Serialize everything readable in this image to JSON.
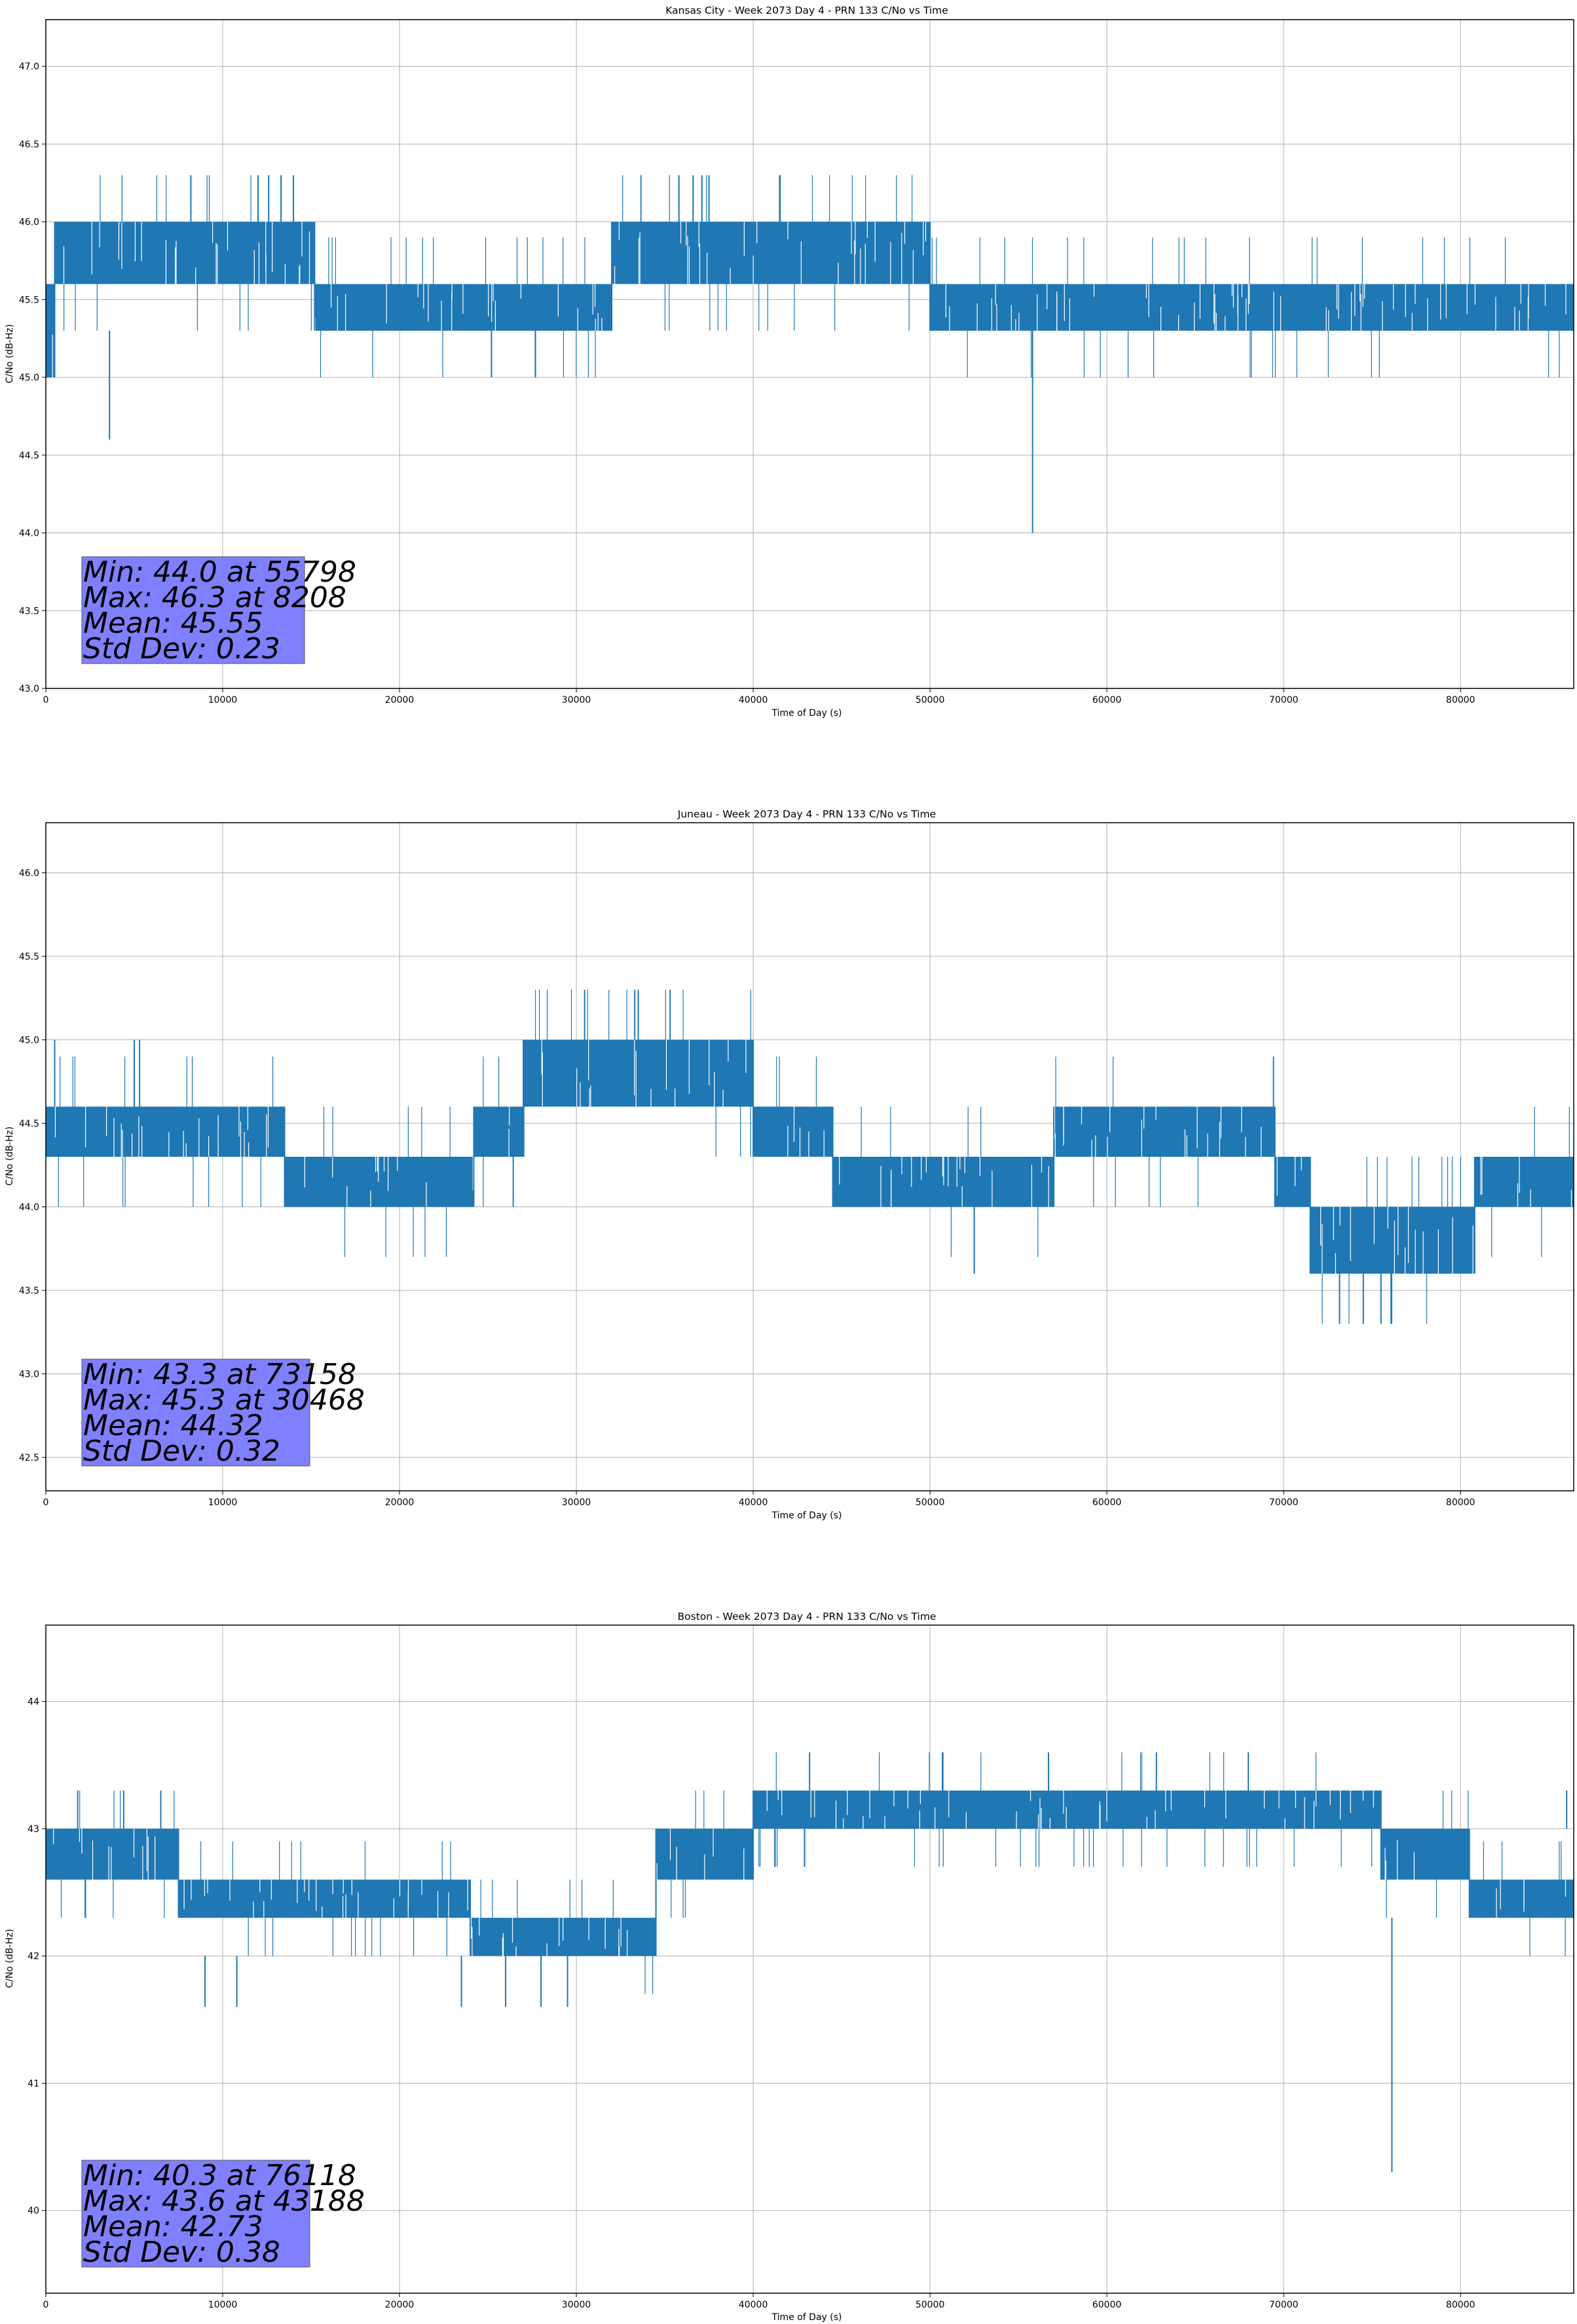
{
  "chart_data": [
    {
      "type": "line",
      "title": "Kansas City - Week 2073 Day 4 - PRN 133 C/No vs Time",
      "xlabel": "Time of Day (s)",
      "ylabel": "C/No (dB-Hz)",
      "xlim": [
        0,
        86400
      ],
      "ylim": [
        43.0,
        47.3
      ],
      "xticks": [
        0,
        10000,
        20000,
        30000,
        40000,
        50000,
        60000,
        70000,
        80000
      ],
      "yticks": [
        43.0,
        43.5,
        44.0,
        44.5,
        45.0,
        45.5,
        46.0,
        46.5,
        47.0
      ],
      "ytick_decimals": 1,
      "grid": true,
      "line_color": "#1f77b4",
      "bands": [
        {
          "x0": 0,
          "x1": 500,
          "lo": 45.0,
          "hi": 45.6
        },
        {
          "x0": 500,
          "x1": 15200,
          "lo": 45.6,
          "hi": 46.0
        },
        {
          "x0": 15200,
          "x1": 32000,
          "lo": 45.3,
          "hi": 45.6
        },
        {
          "x0": 32000,
          "x1": 50000,
          "lo": 45.6,
          "hi": 46.0
        },
        {
          "x0": 50000,
          "x1": 86400,
          "lo": 45.3,
          "hi": 45.6
        }
      ],
      "spikes": [
        {
          "x": 3600,
          "from": 45.3,
          "to": 44.6
        },
        {
          "x": 8200,
          "from": 46.0,
          "to": 46.3
        },
        {
          "x": 12000,
          "from": 46.0,
          "to": 46.3
        },
        {
          "x": 12600,
          "from": 46.0,
          "to": 46.3
        },
        {
          "x": 13300,
          "from": 46.0,
          "to": 46.3
        },
        {
          "x": 14000,
          "from": 46.0,
          "to": 46.3
        },
        {
          "x": 25200,
          "from": 45.3,
          "to": 45.0
        },
        {
          "x": 35800,
          "from": 46.0,
          "to": 46.3
        },
        {
          "x": 36600,
          "from": 46.0,
          "to": 46.3
        },
        {
          "x": 37100,
          "from": 46.0,
          "to": 46.3
        },
        {
          "x": 37500,
          "from": 46.0,
          "to": 46.3
        },
        {
          "x": 55798,
          "from": 45.3,
          "to": 44.0
        }
      ],
      "stats": {
        "min": "Min: 44.0 at 55798",
        "max": "Max: 46.3 at 8208",
        "mean": "Mean: 45.55",
        "std": "Std Dev: 0.23"
      }
    },
    {
      "type": "line",
      "title": "Juneau - Week 2073 Day 4 - PRN 133 C/No vs Time",
      "xlabel": "Time of Day (s)",
      "ylabel": "C/No (dB-Hz)",
      "xlim": [
        0,
        86400
      ],
      "ylim": [
        42.3,
        46.3
      ],
      "xticks": [
        0,
        10000,
        20000,
        30000,
        40000,
        50000,
        60000,
        70000,
        80000
      ],
      "yticks": [
        42.5,
        43.0,
        43.5,
        44.0,
        44.5,
        45.0,
        45.5,
        46.0
      ],
      "ytick_decimals": 1,
      "grid": true,
      "line_color": "#1f77b4",
      "bands": [
        {
          "x0": 0,
          "x1": 13500,
          "lo": 44.3,
          "hi": 44.6
        },
        {
          "x0": 13500,
          "x1": 24200,
          "lo": 44.0,
          "hi": 44.3
        },
        {
          "x0": 24200,
          "x1": 27000,
          "lo": 44.3,
          "hi": 44.6
        },
        {
          "x0": 27000,
          "x1": 40000,
          "lo": 44.6,
          "hi": 45.0
        },
        {
          "x0": 40000,
          "x1": 44500,
          "lo": 44.3,
          "hi": 44.6
        },
        {
          "x0": 44500,
          "x1": 57000,
          "lo": 44.0,
          "hi": 44.3
        },
        {
          "x0": 57000,
          "x1": 69500,
          "lo": 44.3,
          "hi": 44.6
        },
        {
          "x0": 69500,
          "x1": 71500,
          "lo": 44.0,
          "hi": 44.3
        },
        {
          "x0": 71500,
          "x1": 80800,
          "lo": 43.6,
          "hi": 44.0
        },
        {
          "x0": 80800,
          "x1": 86400,
          "lo": 44.0,
          "hi": 44.3
        }
      ],
      "spikes": [
        {
          "x": 500,
          "from": 44.6,
          "to": 45.0
        },
        {
          "x": 5000,
          "from": 44.6,
          "to": 45.0
        },
        {
          "x": 5300,
          "from": 44.6,
          "to": 45.0
        },
        {
          "x": 30468,
          "from": 45.0,
          "to": 45.3
        },
        {
          "x": 33300,
          "from": 45.0,
          "to": 45.3
        },
        {
          "x": 33500,
          "from": 45.0,
          "to": 45.3
        },
        {
          "x": 35300,
          "from": 45.0,
          "to": 45.3
        },
        {
          "x": 52500,
          "from": 44.0,
          "to": 43.6
        },
        {
          "x": 73158,
          "from": 43.6,
          "to": 43.3
        },
        {
          "x": 74500,
          "from": 43.6,
          "to": 43.3
        },
        {
          "x": 75500,
          "from": 43.6,
          "to": 43.3
        },
        {
          "x": 76100,
          "from": 43.6,
          "to": 43.3
        }
      ],
      "stats": {
        "min": "Min: 43.3 at 73158",
        "max": "Max: 45.3 at 30468",
        "mean": "Mean: 44.32",
        "std": "Std Dev: 0.32"
      }
    },
    {
      "type": "line",
      "title": "Boston - Week 2073 Day 4 - PRN 133 C/No vs Time",
      "xlabel": "Time of Day (s)",
      "ylabel": "C/No (dB-Hz)",
      "xlim": [
        0,
        86400
      ],
      "ylim": [
        39.35,
        44.6
      ],
      "xticks": [
        0,
        10000,
        20000,
        30000,
        40000,
        50000,
        60000,
        70000,
        80000
      ],
      "yticks": [
        40,
        41,
        42,
        43,
        44
      ],
      "ytick_decimals": 0,
      "grid": true,
      "line_color": "#1f77b4",
      "bands": [
        {
          "x0": 0,
          "x1": 7500,
          "lo": 42.6,
          "hi": 43.0
        },
        {
          "x0": 7500,
          "x1": 24000,
          "lo": 42.3,
          "hi": 42.6
        },
        {
          "x0": 24000,
          "x1": 34500,
          "lo": 42.0,
          "hi": 42.3
        },
        {
          "x0": 34500,
          "x1": 40000,
          "lo": 42.6,
          "hi": 43.0
        },
        {
          "x0": 40000,
          "x1": 75500,
          "lo": 43.0,
          "hi": 43.3
        },
        {
          "x0": 75500,
          "x1": 80500,
          "lo": 42.6,
          "hi": 43.0
        },
        {
          "x0": 80500,
          "x1": 86400,
          "lo": 42.3,
          "hi": 42.6
        }
      ],
      "spikes": [
        {
          "x": 1800,
          "from": 43.0,
          "to": 43.3
        },
        {
          "x": 4400,
          "from": 43.0,
          "to": 43.3
        },
        {
          "x": 6500,
          "from": 43.0,
          "to": 43.3
        },
        {
          "x": 9000,
          "from": 42.0,
          "to": 41.6
        },
        {
          "x": 10800,
          "from": 42.0,
          "to": 41.6
        },
        {
          "x": 23500,
          "from": 42.0,
          "to": 41.6
        },
        {
          "x": 26000,
          "from": 42.0,
          "to": 41.6
        },
        {
          "x": 28000,
          "from": 42.0,
          "to": 41.6
        },
        {
          "x": 29500,
          "from": 42.0,
          "to": 41.6
        },
        {
          "x": 43188,
          "from": 43.3,
          "to": 43.6
        },
        {
          "x": 50700,
          "from": 43.3,
          "to": 43.6
        },
        {
          "x": 56700,
          "from": 43.3,
          "to": 43.6
        },
        {
          "x": 62800,
          "from": 43.3,
          "to": 43.6
        },
        {
          "x": 68000,
          "from": 43.3,
          "to": 43.6
        },
        {
          "x": 76118,
          "from": 42.3,
          "to": 40.3
        },
        {
          "x": 86000,
          "from": 43.0,
          "to": 43.3
        }
      ],
      "stats": {
        "min": "Min: 40.3 at 76118",
        "max": "Max: 43.6 at 43188",
        "mean": "Mean: 42.73",
        "std": "Std Dev: 0.38"
      }
    }
  ]
}
